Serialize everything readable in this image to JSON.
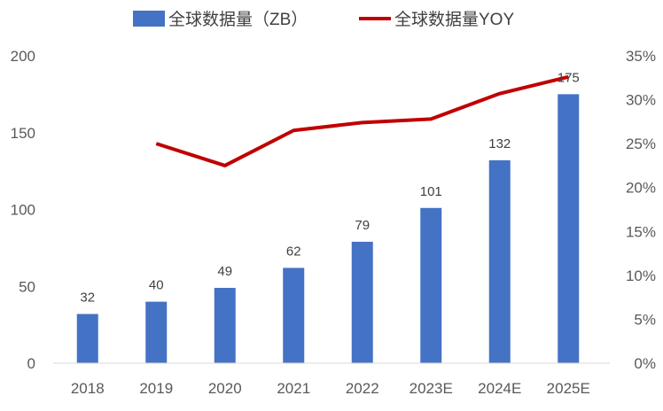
{
  "chart_data": {
    "type": "bar+line",
    "categories": [
      "2018",
      "2019",
      "2020",
      "2021",
      "2022",
      "2023E",
      "2024E",
      "2025E"
    ],
    "series": [
      {
        "name": "全球数据量（ZB）",
        "type": "bar",
        "axis": "left",
        "color": "#4472C4",
        "values": [
          32,
          40,
          49,
          62,
          79,
          101,
          132,
          175
        ]
      },
      {
        "name": "全球数据量YOY",
        "type": "line",
        "axis": "right",
        "color": "#C00000",
        "values": [
          null,
          25.0,
          22.5,
          26.5,
          27.4,
          27.8,
          30.7,
          32.6
        ]
      }
    ],
    "left_axis": {
      "ylim": [
        0,
        200
      ],
      "ticks": [
        "0",
        "50",
        "100",
        "150",
        "200"
      ]
    },
    "right_axis": {
      "ylim": [
        0,
        35
      ],
      "ticks": [
        "0%",
        "5%",
        "10%",
        "15%",
        "20%",
        "25%",
        "30%",
        "35%"
      ]
    },
    "legend": "top",
    "grid": false
  }
}
